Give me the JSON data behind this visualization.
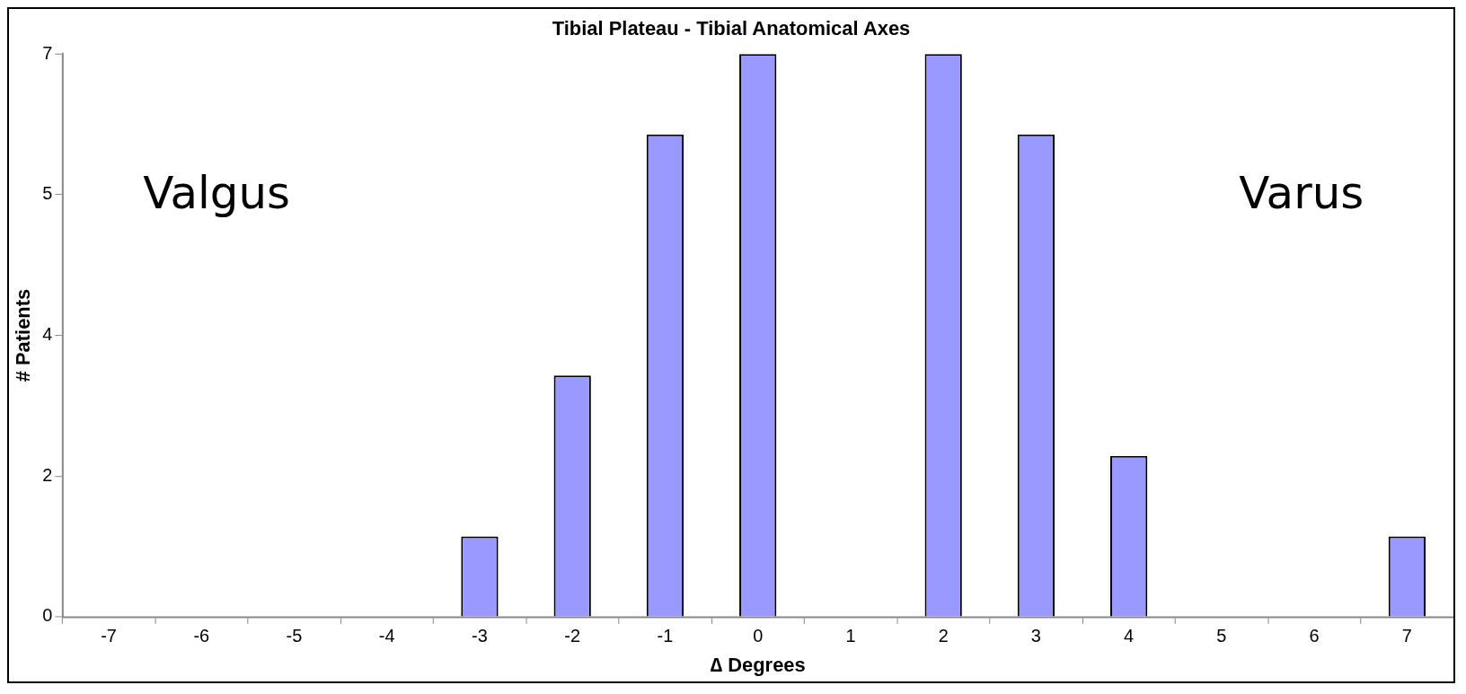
{
  "chart_data": {
    "type": "bar",
    "title": "Tibial Plateau - Tibial Anatomical Axes",
    "xlabel": "∆ Degrees",
    "ylabel": "# Patients",
    "categories": [
      "-7",
      "-6",
      "-5",
      "-4",
      "-3",
      "-2",
      "-1",
      "0",
      "1",
      "2",
      "3",
      "4",
      "5",
      "6",
      "7"
    ],
    "values": [
      0,
      0,
      0,
      0,
      1,
      3,
      6,
      7,
      0,
      7,
      6,
      2,
      0,
      0,
      1
    ],
    "color": "#9999ff",
    "ylim": [
      0,
      7
    ],
    "yticks": [
      0,
      {
        "value": 1.75,
        "label": "2"
      },
      {
        "value": 3.5,
        "label": "4"
      },
      {
        "value": 5.25,
        "label": "5"
      },
      7
    ],
    "annotations": [
      "Valgus",
      "Varus"
    ],
    "grid": false,
    "legend": false
  }
}
